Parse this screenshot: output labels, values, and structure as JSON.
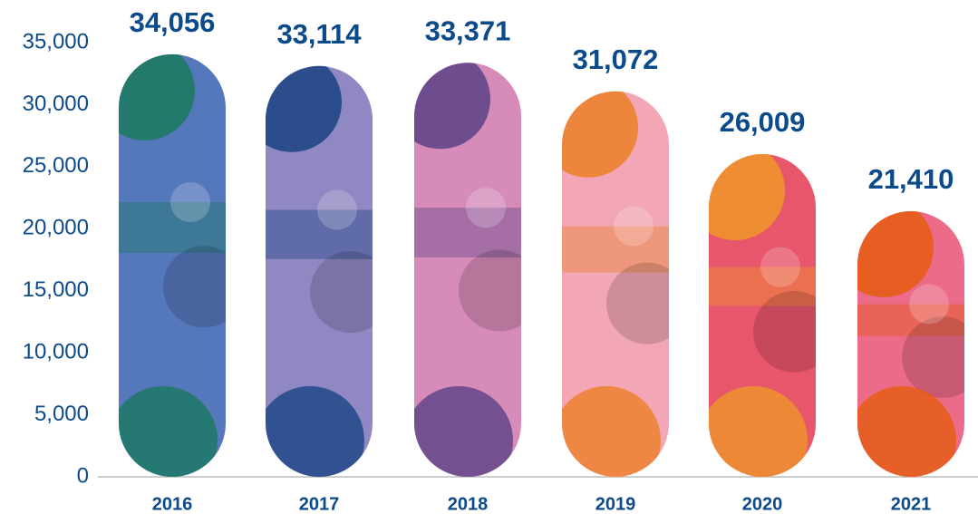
{
  "chart_data": {
    "type": "bar",
    "categories": [
      "2016",
      "2017",
      "2018",
      "2019",
      "2020",
      "2021"
    ],
    "values": [
      34056,
      33114,
      33371,
      31072,
      26009,
      21410
    ],
    "value_labels": [
      "34,056",
      "33,114",
      "33,371",
      "31,072",
      "26,009",
      "21,410"
    ],
    "colors": [
      "#5577bb",
      "#9088c2",
      "#d68bb8",
      "#f2a6b6",
      "#e8566c",
      "#ec6b88"
    ],
    "accent_colors": [
      "#127a52",
      "#0a3a7a",
      "#4a3880",
      "#ec7a14",
      "#f0a020",
      "#e65a00"
    ],
    "ylim": [
      0,
      35000
    ],
    "yticks": [
      0,
      {
        "value": 5000,
        "label": "5,000"
      },
      {
        "value": 10000,
        "label": "10,000"
      },
      {
        "value": 15000,
        "label": "15,000"
      },
      {
        "value": 20000,
        "label": "20,000"
      },
      {
        "value": 25000,
        "label": "25,000"
      },
      {
        "value": 30000,
        "label": "30,000"
      },
      {
        "value": 35000,
        "label": "35,000"
      }
    ],
    "grid": false
  }
}
